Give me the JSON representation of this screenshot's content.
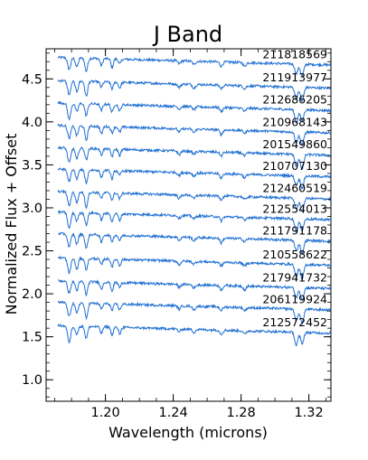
{
  "chart_data": {
    "type": "line",
    "title": "J Band",
    "xlabel": "Wavelength (microns)",
    "ylabel": "Normalized Flux + Offset",
    "xlim": [
      1.165,
      1.333
    ],
    "ylim": [
      0.75,
      4.85
    ],
    "xticks": [
      1.2,
      1.24,
      1.28,
      1.32
    ],
    "xtick_labels": [
      "1.20",
      "1.24",
      "1.28",
      "1.32"
    ],
    "yticks": [
      1.0,
      1.5,
      2.0,
      2.5,
      3.0,
      3.5,
      4.0,
      4.5
    ],
    "ytick_labels": [
      "1.0",
      "1.5",
      "2.0",
      "2.5",
      "3.0",
      "3.5",
      "4.0",
      "4.5"
    ],
    "grid": false,
    "line_color": "#1f6fd1",
    "series": [
      {
        "name": "211818569",
        "offset": 4.75
      },
      {
        "name": "211913977",
        "offset": 4.48
      },
      {
        "name": "212686205",
        "offset": 4.22
      },
      {
        "name": "210968143",
        "offset": 3.96
      },
      {
        "name": "201549860",
        "offset": 3.7
      },
      {
        "name": "210707130",
        "offset": 3.45
      },
      {
        "name": "212460519",
        "offset": 3.19
      },
      {
        "name": "212554013",
        "offset": 2.95
      },
      {
        "name": "211791178",
        "offset": 2.7
      },
      {
        "name": "210558622",
        "offset": 2.42
      },
      {
        "name": "217941732",
        "offset": 2.15
      },
      {
        "name": "206119924",
        "offset": 1.9
      },
      {
        "name": "212572452",
        "offset": 1.63
      }
    ],
    "absorption_lines": [
      1.1786,
      1.1831,
      1.1887,
      1.1976,
      1.2039,
      1.2084,
      1.2435,
      1.2522,
      1.2683,
      1.2821,
      1.3126,
      1.316
    ]
  }
}
